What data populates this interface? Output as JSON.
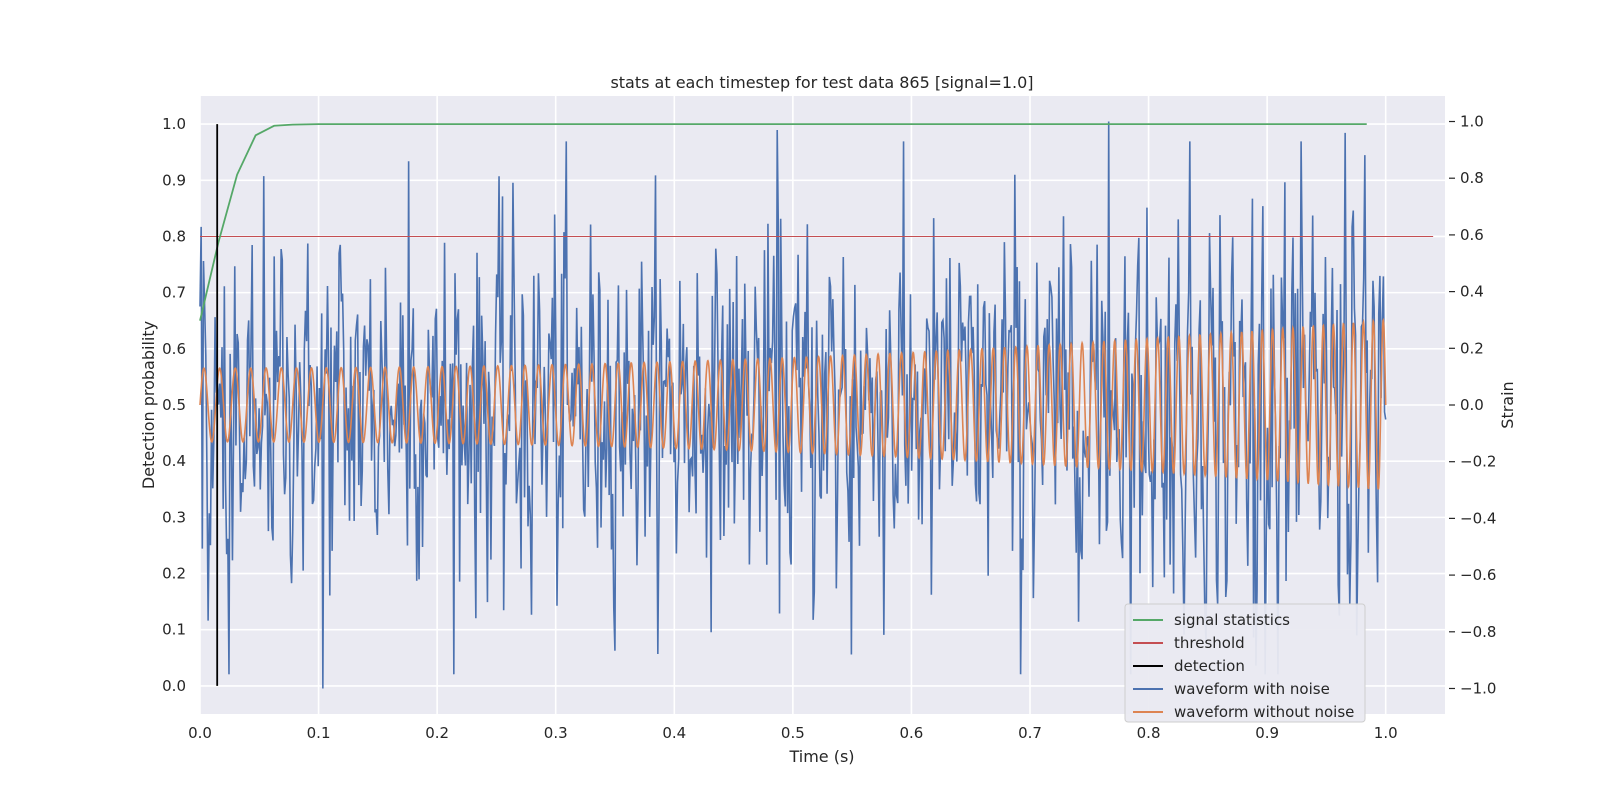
{
  "chart_data": {
    "type": "line",
    "title": "stats at each timestep for test data 865 [signal=1.0]",
    "xlabel": "Time (s)",
    "ylabel": "Detection probability",
    "ylabel_right": "Strain",
    "xlim": [
      0.0,
      1.05
    ],
    "ylim": [
      -0.05,
      1.05
    ],
    "ylim_right": [
      -1.09,
      1.09
    ],
    "grid": true,
    "background": "#eaeaf2",
    "legend_position": "lower-right",
    "x_ticks": [
      "0.0",
      "0.1",
      "0.2",
      "0.3",
      "0.4",
      "0.5",
      "0.6",
      "0.7",
      "0.8",
      "0.9",
      "1.0"
    ],
    "y_ticks": [
      "0.0",
      "0.1",
      "0.2",
      "0.3",
      "0.4",
      "0.5",
      "0.6",
      "0.7",
      "0.8",
      "0.9",
      "1.0"
    ],
    "y_right_ticks": [
      "−1.0",
      "−0.8",
      "−0.6",
      "−0.4",
      "−0.2",
      "0.0",
      "0.2",
      "0.4",
      "0.6",
      "0.8",
      "1.0"
    ],
    "series": [
      {
        "name": "signal statistics",
        "color": "#55a868",
        "axis": "left",
        "x": [
          0.0,
          0.0156,
          0.0313,
          0.0469,
          0.0625,
          0.0781,
          0.1,
          0.2,
          0.4,
          0.6,
          0.8,
          0.984
        ],
        "y": [
          0.65,
          0.79,
          0.91,
          0.98,
          0.997,
          0.999,
          1.0,
          1.0,
          1.0,
          1.0,
          1.0,
          1.0
        ]
      },
      {
        "name": "threshold",
        "color": "#c44e52",
        "axis": "left",
        "x": [
          0.0,
          1.04
        ],
        "y": [
          0.8,
          0.8
        ]
      },
      {
        "name": "detection",
        "color": "#000000",
        "axis": "left",
        "x": [
          0.0145,
          0.0145
        ],
        "y": [
          0.0,
          1.0
        ]
      },
      {
        "name": "waveform with noise",
        "color": "#4c72b0",
        "axis": "right",
        "x_range": [
          0.0,
          1.0
        ],
        "points": 1024,
        "approx_range": [
          -1.0,
          1.0
        ],
        "notable_points": [
          {
            "x": 0.104,
            "y": -1.0
          },
          {
            "x": 0.176,
            "y": 0.86
          },
          {
            "x": 0.28,
            "y": -0.74
          },
          {
            "x": 0.487,
            "y": 0.97
          },
          {
            "x": 0.549,
            "y": -0.88
          },
          {
            "x": 0.766,
            "y": 1.0
          },
          {
            "x": 0.889,
            "y": -0.82
          },
          {
            "x": 0.966,
            "y": 0.96
          }
        ]
      },
      {
        "name": "waveform without noise",
        "color": "#dd8452",
        "axis": "right",
        "x_range": [
          0.0,
          1.0
        ],
        "shape": "chirp",
        "amplitude_start": 0.13,
        "amplitude_end": 0.3,
        "cycles": 95
      }
    ]
  }
}
